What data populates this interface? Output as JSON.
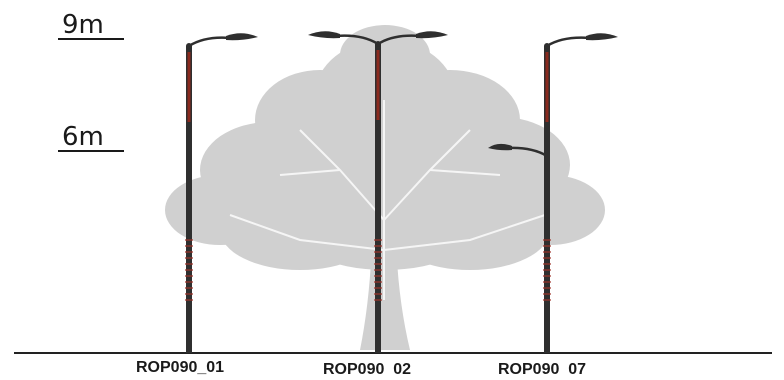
{
  "heights": {
    "top": "9m",
    "mid": "6m"
  },
  "poles": [
    {
      "label": "ROP090_01",
      "arms": [
        "right"
      ]
    },
    {
      "label": "ROP090  02",
      "arms": [
        "left",
        "right"
      ]
    },
    {
      "label": "ROP090  07",
      "arms": [
        "right",
        "left-low"
      ]
    }
  ],
  "colors": {
    "pole": "#2f2f2f",
    "pole_accent": "#8a2a1e",
    "tree": "#cfcfcf",
    "ground": "#222222"
  }
}
